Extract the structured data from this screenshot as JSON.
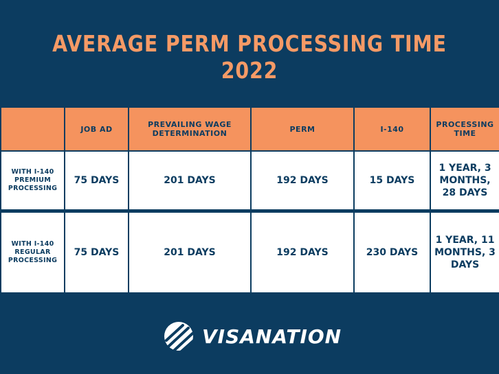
{
  "title": "Average PERM Processing Time 2022",
  "table": {
    "headers": [
      "",
      "JOB AD",
      "PREVAILING WAGE DETERMINATION",
      "PERM",
      "I-140",
      "PROCESSING TIME"
    ],
    "rows": [
      {
        "label": "WITH I-140 PREMIUM PROCESSING",
        "cells": [
          "75 DAYS",
          "201 DAYS",
          "192 DAYS",
          "15 DAYS",
          "1 YEAR, 3 MONTHS, 28 DAYS"
        ]
      },
      {
        "label": "WITH I-140 REGULAR PROCESSING",
        "cells": [
          "75 DAYS",
          "201 DAYS",
          "192 DAYS",
          "230 DAYS",
          "1 YEAR, 11 MONTHS, 3 DAYS"
        ]
      }
    ]
  },
  "logo": {
    "text": "VISANATION",
    "icon": "visanation-globe-icon"
  },
  "colors": {
    "background": "#0c3c60",
    "accent": "#f5935e",
    "title": "#f59a66",
    "cell_bg": "#ffffff",
    "text": "#0c3c60"
  }
}
